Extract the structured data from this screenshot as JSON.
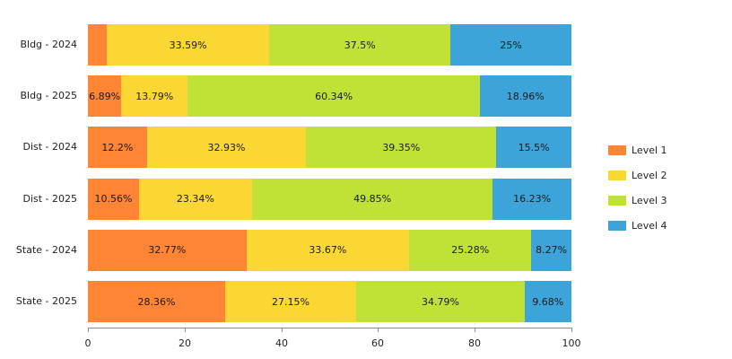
{
  "chart_data": {
    "type": "bar",
    "orientation": "horizontal",
    "stacked": true,
    "title": "",
    "xlabel": "",
    "ylabel": "",
    "xlim": [
      0,
      100
    ],
    "x_ticks": [
      "0",
      "20",
      "40",
      "60",
      "80",
      "100"
    ],
    "grid": false,
    "legend_position": "right",
    "categories": [
      "Bldg - 2024",
      "Bldg - 2025",
      "Dist - 2024",
      "Dist - 2025",
      "State - 2024",
      "State - 2025"
    ],
    "series": [
      {
        "name": "Level 1",
        "color": "#FE8533",
        "values": [
          3.91,
          6.89,
          12.2,
          10.56,
          32.77,
          28.36
        ],
        "labels": [
          "",
          "6.89%",
          "12.2%",
          "10.56%",
          "32.77%",
          "28.36%"
        ]
      },
      {
        "name": "Level 2",
        "color": "#FBD733",
        "values": [
          33.59,
          13.79,
          32.93,
          23.34,
          33.67,
          27.15
        ],
        "labels": [
          "33.59%",
          "13.79%",
          "32.93%",
          "23.34%",
          "33.67%",
          "27.15%"
        ]
      },
      {
        "name": "Level 3",
        "color": "#C0E236",
        "values": [
          37.5,
          60.34,
          39.35,
          49.85,
          25.28,
          34.79
        ],
        "labels": [
          "37.5%",
          "60.34%",
          "39.35%",
          "49.85%",
          "25.28%",
          "34.79%"
        ]
      },
      {
        "name": "Level 4",
        "color": "#3DA4DA",
        "values": [
          25,
          18.96,
          15.5,
          16.23,
          8.27,
          9.68
        ],
        "labels": [
          "25%",
          "18.96%",
          "15.5%",
          "16.23%",
          "8.27%",
          "9.68%"
        ]
      }
    ]
  },
  "legend": {
    "items": [
      {
        "label": "Level 1",
        "color": "#FE8533"
      },
      {
        "label": "Level 2",
        "color": "#FBD733"
      },
      {
        "label": "Level 3",
        "color": "#C0E236"
      },
      {
        "label": "Level 4",
        "color": "#3DA4DA"
      }
    ]
  }
}
